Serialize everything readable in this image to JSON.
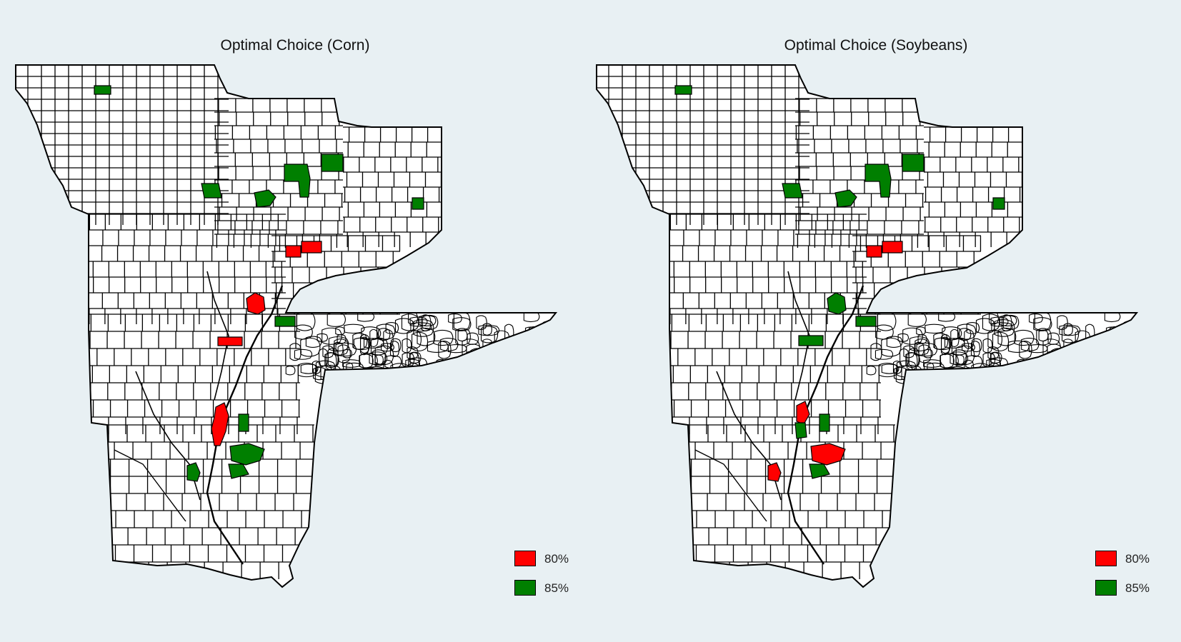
{
  "colors": {
    "background": "#e8f0f3",
    "land": "#ffffff",
    "border": "#000000",
    "red": "#ff0000",
    "green": "#007f00"
  },
  "maps": [
    {
      "title": "Optimal Choice (Corn)",
      "legend": [
        {
          "label": "80%",
          "color": "#ff0000"
        },
        {
          "label": "85%",
          "color": "#007f00"
        }
      ]
    },
    {
      "title": "Optimal Choice (Soybeans)",
      "legend": [
        {
          "label": "80%",
          "color": "#ff0000"
        },
        {
          "label": "85%",
          "color": "#007f00"
        }
      ]
    }
  ]
}
